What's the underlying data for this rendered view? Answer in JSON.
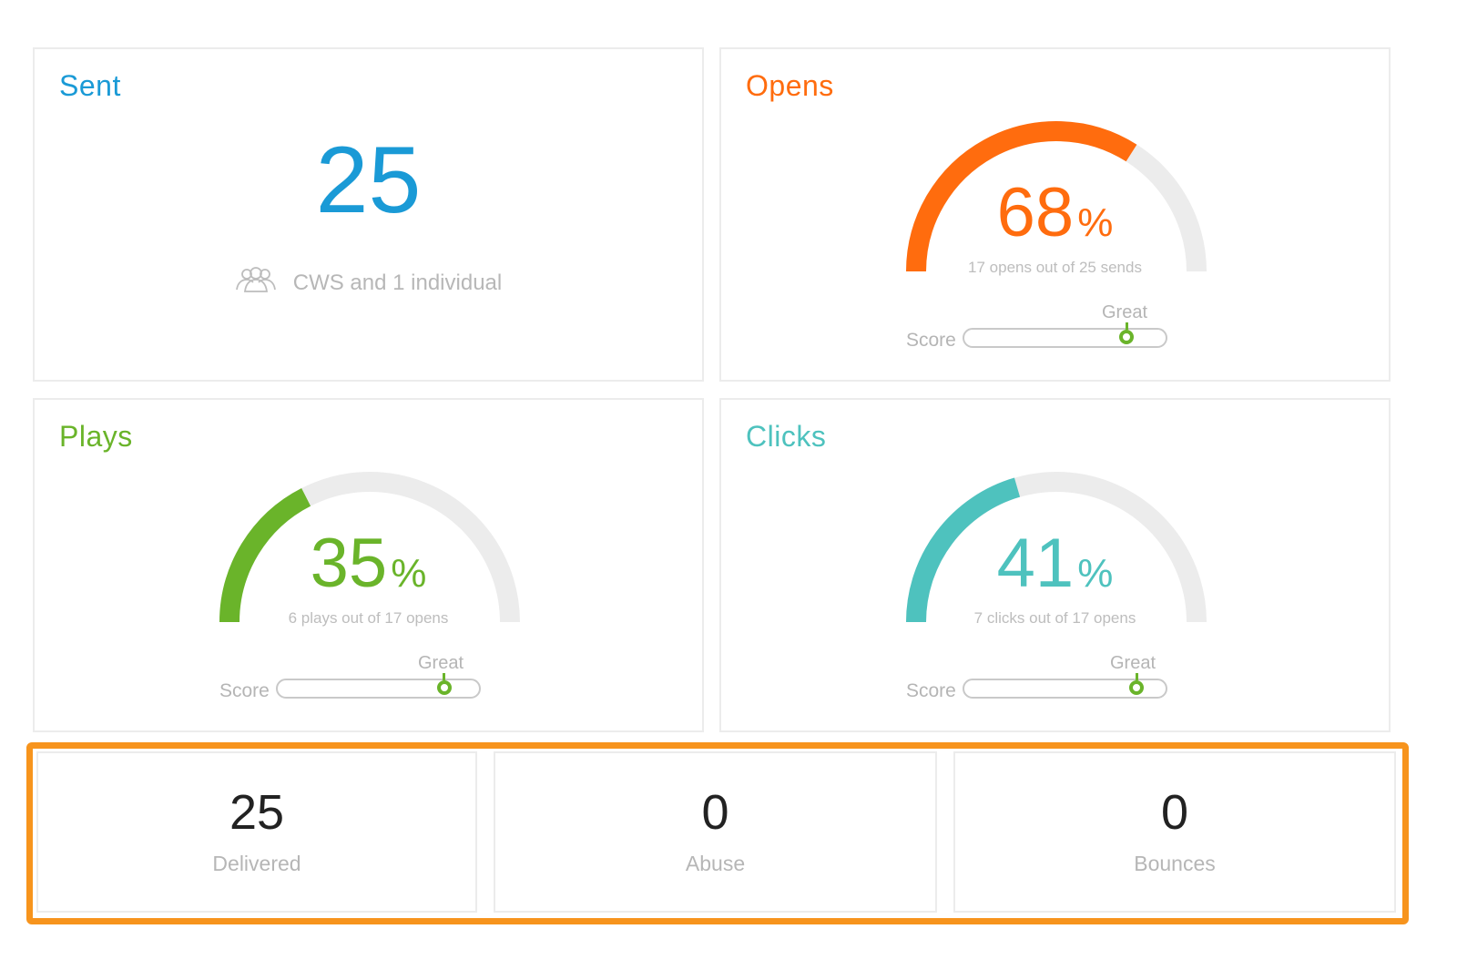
{
  "cards": {
    "sent": {
      "title": "Sent",
      "value": "25",
      "recipients": "CWS and 1 individual",
      "icon": "group-icon",
      "color": "#1a9ad6"
    },
    "opens": {
      "title": "Opens",
      "percent": 68,
      "percent_label": "68",
      "sign": "%",
      "detail": "17 opens out of 25 sends",
      "score_label": "Score",
      "score_rating": "Great",
      "score_level": 0.8,
      "color": "#ff6c0e"
    },
    "plays": {
      "title": "Plays",
      "percent": 35,
      "percent_label": "35",
      "sign": "%",
      "detail": "6 plays out of 17 opens",
      "score_label": "Score",
      "score_rating": "Great",
      "score_level": 0.82,
      "color": "#6ab42a"
    },
    "clicks": {
      "title": "Clicks",
      "percent": 41,
      "percent_label": "41",
      "sign": "%",
      "detail": "7 clicks out of 17 opens",
      "score_label": "Score",
      "score_rating": "Great",
      "score_level": 0.85,
      "color": "#4ec2be"
    }
  },
  "stats": {
    "delivered": {
      "value": "25",
      "label": "Delivered"
    },
    "abuse": {
      "value": "0",
      "label": "Abuse"
    },
    "bounces": {
      "value": "0",
      "label": "Bounces"
    }
  },
  "colors": {
    "track": "#ececec",
    "score_marker": "#6ab42a",
    "highlight": "#f7941d"
  }
}
